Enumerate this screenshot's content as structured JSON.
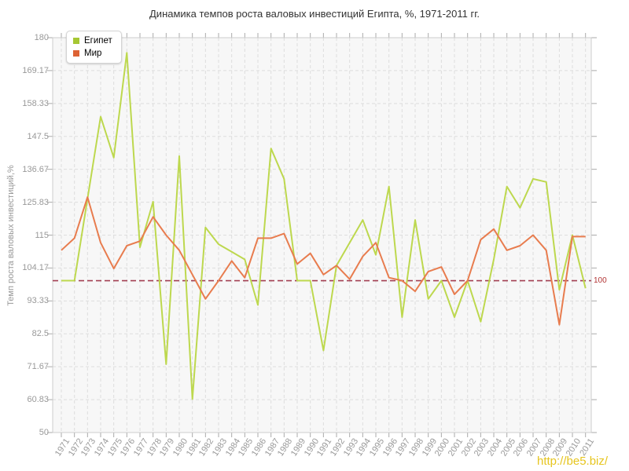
{
  "title": "Динамика темпов роста валовых инвестиций Египта, %, 1971-2011 гг.",
  "y_axis_title": "Темп роста валовых инвестиций,%",
  "legend": {
    "items": [
      {
        "label": "Египет",
        "color": "#a6c733"
      },
      {
        "label": "Мир",
        "color": "#dd6234"
      }
    ]
  },
  "guide": {
    "label": "100",
    "value": 100,
    "line_color": "#a33f52",
    "label_color": "#b23535"
  },
  "watermark": {
    "text": "http://be5.biz/",
    "color": "#e6c51e"
  },
  "style": {
    "plot_bg": "#f7f7f7",
    "grid_color": "#dddddd",
    "border_color": "#cccccc",
    "tick_color": "#aaaaaa"
  },
  "chart_data": {
    "type": "line",
    "title": "Динамика темпов роста валовых инвестиций Египта, %, 1971-2011 гг.",
    "xlabel": "",
    "ylabel": "Темп роста валовых инвестиций,%",
    "ylim": [
      50,
      180
    ],
    "grid": true,
    "legend_position": "top-left-inside",
    "y_ticks": [
      "180",
      "169.17",
      "158.33",
      "147.5",
      "136.67",
      "125.83",
      "115",
      "104.17",
      "93.33",
      "82.5",
      "71.67",
      "60.83",
      "50"
    ],
    "categories": [
      "1971",
      "1972",
      "1973",
      "1974",
      "1975",
      "1976",
      "1977",
      "1978",
      "1979",
      "1980",
      "1981",
      "1982",
      "1983",
      "1984",
      "1985",
      "1986",
      "1987",
      "1988",
      "1989",
      "1990",
      "1991",
      "1992",
      "1993",
      "1994",
      "1995",
      "1996",
      "1997",
      "1998",
      "1999",
      "2000",
      "2001",
      "2002",
      "2003",
      "2004",
      "2005",
      "2006",
      "2007",
      "2008",
      "2009",
      "2010",
      "2011"
    ],
    "guide_line": {
      "value": 100,
      "label": "100"
    },
    "series": [
      {
        "name": "Египет",
        "line_color": "#bdd84e",
        "values": [
          100,
          100,
          127,
          154,
          140.5,
          175,
          111,
          126,
          72.5,
          141,
          61,
          117.5,
          112,
          109.5,
          107,
          92,
          143.5,
          133.5,
          100,
          100,
          77,
          105,
          112.5,
          120,
          108.5,
          131,
          88,
          120,
          94,
          100,
          88,
          100,
          86.5,
          107,
          131,
          124,
          133.5,
          132.5,
          97,
          115,
          97.5
        ]
      },
      {
        "name": "Мир",
        "line_color": "#e87c4e",
        "values": [
          110,
          114,
          127.5,
          112.5,
          104,
          111.5,
          113,
          121,
          115,
          110,
          102,
          94,
          100,
          106.5,
          101,
          114,
          114,
          115.5,
          105.5,
          109,
          102,
          105,
          100.5,
          108,
          112.5,
          101,
          100,
          96.5,
          103,
          104.5,
          95.5,
          100,
          113.5,
          117,
          110,
          111.5,
          115,
          110,
          85.5,
          114.5,
          114.5
        ]
      }
    ]
  }
}
